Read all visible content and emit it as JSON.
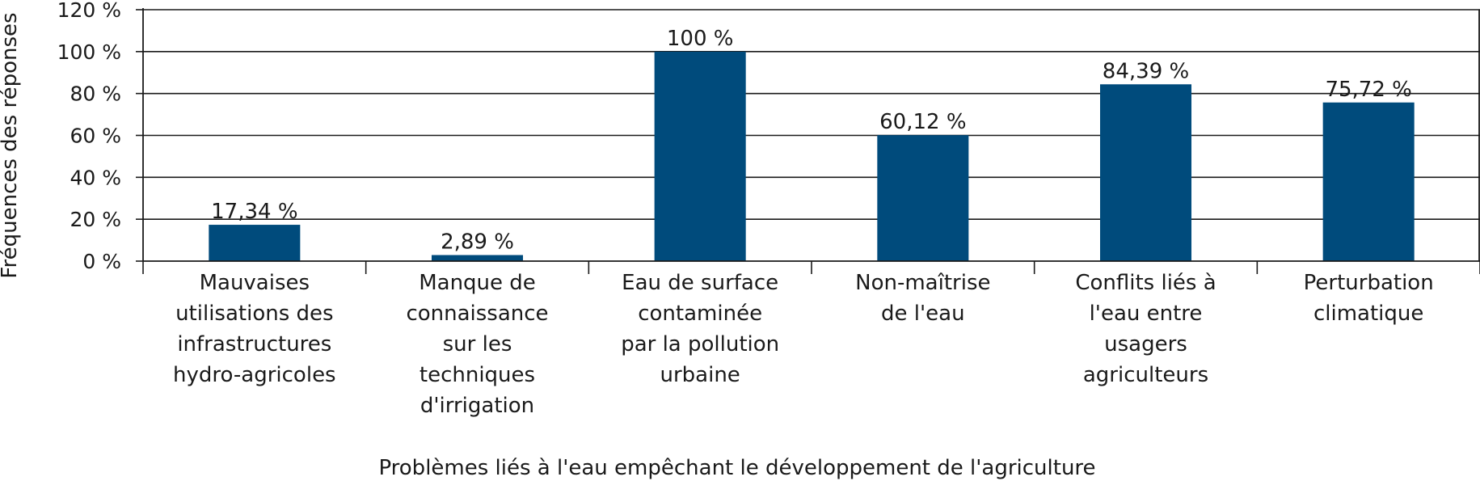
{
  "chart_data": {
    "type": "bar",
    "categories": [
      "Mauvaises utilisations des infrastructures hydro-agricoles",
      "Manque de connaissance sur les techniques d'irrigation",
      "Eau de surface contaminée par la pollution urbaine",
      "Non-maîtrise de l'eau",
      "Conflits liés à l'eau entre usagers agriculteurs",
      "Perturbation climatique"
    ],
    "category_lines": [
      [
        "Mauvaises",
        "utilisations des",
        "infrastructures",
        "hydro-agricoles"
      ],
      [
        "Manque de",
        "connaissance",
        "sur les",
        "techniques",
        "d'irrigation"
      ],
      [
        "Eau de surface",
        "contaminée",
        "par la pollution",
        "urbaine"
      ],
      [
        "Non-maîtrise",
        "de l'eau"
      ],
      [
        "Conflits liés à",
        "l'eau entre",
        "usagers",
        "agriculteurs"
      ],
      [
        "Perturbation",
        "climatique"
      ]
    ],
    "values": [
      17.34,
      2.89,
      100,
      60.12,
      84.39,
      75.72
    ],
    "data_labels": [
      "17,34 %",
      "2,89 %",
      "100 %",
      "60,12 %",
      "84,39 %",
      "75,72 %"
    ],
    "yticks": [
      0,
      20,
      40,
      60,
      80,
      100,
      120
    ],
    "ytick_labels": [
      "0 %",
      "20 %",
      "40 %",
      "60 %",
      "80 %",
      "100 %",
      "120 %"
    ],
    "ylim": [
      0,
      120
    ],
    "ylabel": "Fréquences des réponses",
    "xlabel": "Problèmes liés à l'eau empêchant le développement de l'agriculture",
    "grid": true,
    "bar_color": "#004b7c",
    "grid_color": "#1a1a1a"
  }
}
